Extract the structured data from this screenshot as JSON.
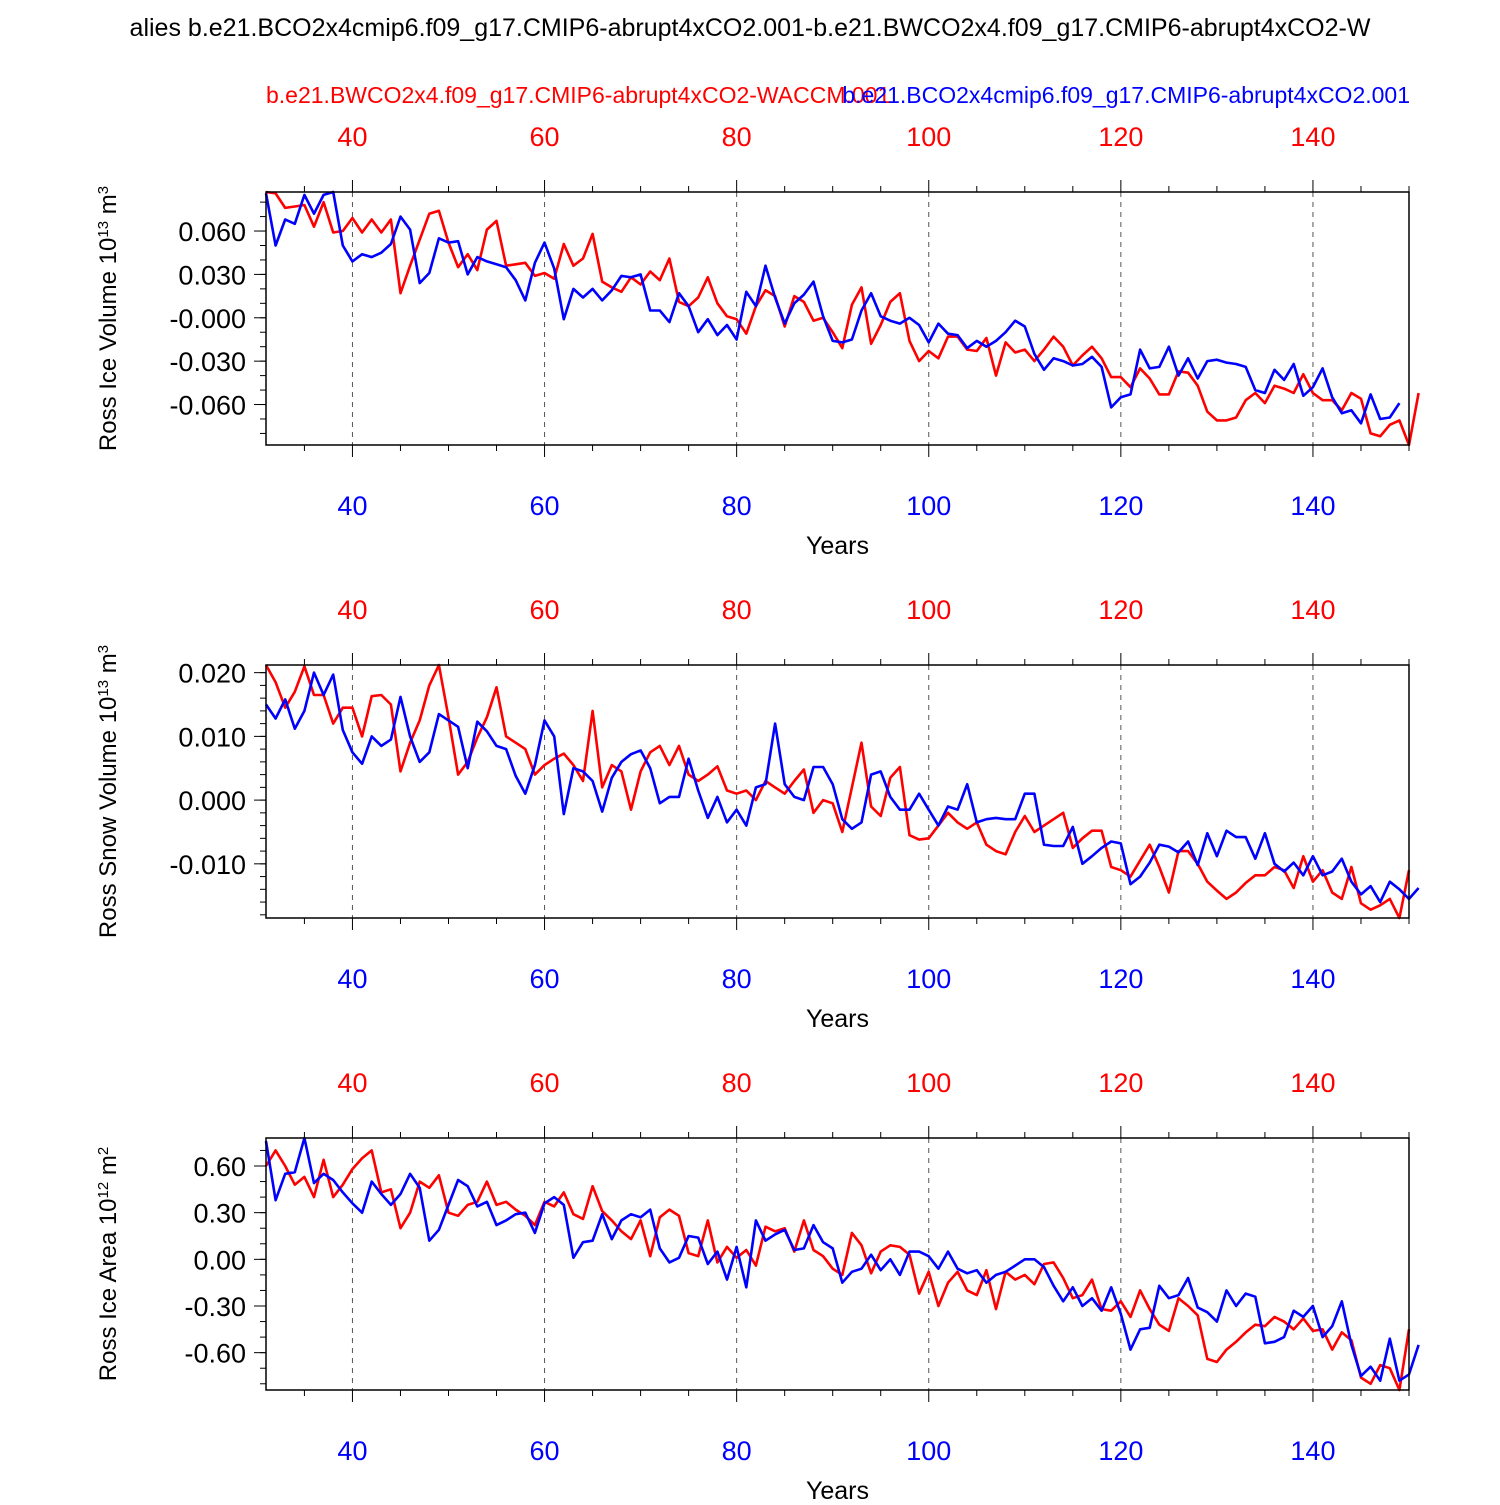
{
  "title": "alies b.e21.BCO2x4cmip6.f09_g17.CMIP6-abrupt4xCO2.001-b.e21.BWCO2x4.f09_g17.CMIP6-abrupt4xCO2-W",
  "legend": {
    "red_label": "b.e21.BWCO2x4.f09_g17.CMIP6-abrupt4xCO2-WACCM.001",
    "blue_label": "b.e21.BCO2x4cmip6.f09_g17.CMIP6-abrupt4xCO2.001"
  },
  "colors": {
    "red": "#ff0000",
    "blue": "#0000ff",
    "axis": "#000000"
  },
  "chart_data": [
    {
      "type": "line",
      "name": "ross-ice-volume",
      "ylabel_main": "Ross Ice Volume 10",
      "ylabel_exp": "13",
      "ylabel_unit": " m",
      "ylabel_unit_exp": "3",
      "xlabel": "Years",
      "xlim": [
        31,
        150
      ],
      "ylim": [
        -0.088,
        0.087
      ],
      "xticks": [
        40,
        60,
        80,
        100,
        120,
        140
      ],
      "xtick_labels": [
        "40",
        "60",
        "80",
        "100",
        "120",
        "140"
      ],
      "yticks": [
        0.06,
        0.03,
        0.0,
        -0.03,
        -0.06
      ],
      "ytick_labels": [
        "0.060",
        "0.030",
        "-0.000",
        "-0.030",
        "-0.060"
      ],
      "yminor_step": 0.01,
      "x_start": 31,
      "series": [
        {
          "name": "red",
          "values": [
            0.087,
            0.086,
            0.076,
            0.077,
            0.078,
            0.063,
            0.08,
            0.059,
            0.06,
            0.069,
            0.059,
            0.068,
            0.059,
            0.068,
            0.017,
            0.036,
            0.054,
            0.072,
            0.074,
            0.052,
            0.035,
            0.044,
            0.033,
            0.061,
            0.067,
            0.036,
            0.037,
            0.038,
            0.029,
            0.031,
            0.027,
            0.051,
            0.036,
            0.041,
            0.058,
            0.025,
            0.021,
            0.018,
            0.028,
            0.023,
            0.032,
            0.026,
            0.041,
            0.011,
            0.008,
            0.014,
            0.028,
            0.01,
            0.001,
            -0.001,
            -0.011,
            0.008,
            0.019,
            0.015,
            -0.006,
            0.015,
            0.011,
            -0.002,
            0.0,
            -0.01,
            -0.021,
            0.009,
            0.021,
            -0.018,
            -0.005,
            0.011,
            0.017,
            -0.016,
            -0.03,
            -0.023,
            -0.028,
            -0.013,
            -0.013,
            -0.022,
            -0.023,
            -0.014,
            -0.04,
            -0.017,
            -0.024,
            -0.022,
            -0.03,
            -0.022,
            -0.013,
            -0.02,
            -0.033,
            -0.026,
            -0.02,
            -0.028,
            -0.041,
            -0.041,
            -0.048,
            -0.035,
            -0.042,
            -0.053,
            -0.053,
            -0.037,
            -0.038,
            -0.047,
            -0.065,
            -0.071,
            -0.071,
            -0.069,
            -0.057,
            -0.052,
            -0.059,
            -0.047,
            -0.049,
            -0.052,
            -0.039,
            -0.052,
            -0.057,
            -0.057,
            -0.064,
            -0.052,
            -0.056,
            -0.08,
            -0.082,
            -0.074,
            -0.071,
            -0.088,
            -0.052
          ]
        },
        {
          "name": "blue",
          "values": [
            0.086,
            0.05,
            0.068,
            0.065,
            0.085,
            0.072,
            0.085,
            0.087,
            0.05,
            0.039,
            0.044,
            0.042,
            0.045,
            0.051,
            0.07,
            0.061,
            0.024,
            0.031,
            0.055,
            0.052,
            0.053,
            0.03,
            0.042,
            0.039,
            0.037,
            0.035,
            0.026,
            0.012,
            0.038,
            0.052,
            0.034,
            -0.001,
            0.02,
            0.014,
            0.02,
            0.012,
            0.019,
            0.029,
            0.028,
            0.03,
            0.005,
            0.005,
            -0.003,
            0.017,
            0.008,
            -0.01,
            -0.001,
            -0.012,
            -0.005,
            -0.015,
            0.018,
            0.008,
            0.036,
            0.014,
            -0.004,
            0.01,
            0.016,
            0.025,
            0.001,
            -0.016,
            -0.017,
            -0.015,
            0.005,
            0.017,
            0.001,
            -0.002,
            -0.004,
            0.0,
            -0.005,
            -0.017,
            -0.004,
            -0.011,
            -0.012,
            -0.021,
            -0.016,
            -0.02,
            -0.016,
            -0.01,
            -0.002,
            -0.006,
            -0.025,
            -0.036,
            -0.028,
            -0.03,
            -0.033,
            -0.032,
            -0.027,
            -0.034,
            -0.062,
            -0.055,
            -0.053,
            -0.022,
            -0.035,
            -0.034,
            -0.02,
            -0.04,
            -0.028,
            -0.042,
            -0.03,
            -0.029,
            -0.031,
            -0.032,
            -0.034,
            -0.05,
            -0.052,
            -0.036,
            -0.043,
            -0.032,
            -0.054,
            -0.048,
            -0.035,
            -0.055,
            -0.066,
            -0.064,
            -0.073,
            -0.053,
            -0.07,
            -0.069,
            -0.059
          ]
        }
      ]
    },
    {
      "type": "line",
      "name": "ross-snow-volume",
      "ylabel_main": "Ross Snow Volume 10",
      "ylabel_exp": "13",
      "ylabel_unit": " m",
      "ylabel_unit_exp": "3",
      "xlabel": "Years",
      "xlim": [
        31,
        150
      ],
      "ylim": [
        -0.0185,
        0.0212
      ],
      "xticks": [
        40,
        60,
        80,
        100,
        120,
        140
      ],
      "xtick_labels": [
        "40",
        "60",
        "80",
        "100",
        "120",
        "140"
      ],
      "yticks": [
        0.02,
        0.01,
        0.0,
        -0.01
      ],
      "ytick_labels": [
        "0.020",
        "0.010",
        "0.000",
        "-0.010"
      ],
      "yminor_step": 0.002,
      "x_start": 31,
      "series": [
        {
          "name": "red",
          "values": [
            0.0212,
            0.0185,
            0.0145,
            0.017,
            0.021,
            0.0165,
            0.0165,
            0.012,
            0.0145,
            0.0145,
            0.01,
            0.0163,
            0.0165,
            0.015,
            0.0045,
            0.009,
            0.0125,
            0.018,
            0.0212,
            0.013,
            0.004,
            0.006,
            0.0098,
            0.013,
            0.0177,
            0.01,
            0.009,
            0.008,
            0.004,
            0.0055,
            0.0065,
            0.0073,
            0.0055,
            0.003,
            0.014,
            0.002,
            0.0055,
            0.0045,
            -0.0015,
            0.0045,
            0.0075,
            0.0085,
            0.0055,
            0.0085,
            0.004,
            0.003,
            0.004,
            0.0053,
            0.0015,
            0.001,
            0.0015,
            0.0,
            0.003,
            0.002,
            0.001,
            0.003,
            0.0048,
            -0.002,
            0.0,
            -0.0005,
            -0.005,
            0.002,
            0.009,
            -0.001,
            -0.0025,
            0.0035,
            0.0052,
            -0.0055,
            -0.0062,
            -0.006,
            -0.004,
            -0.002,
            -0.0035,
            -0.0045,
            -0.0035,
            -0.007,
            -0.008,
            -0.0085,
            -0.005,
            -0.0025,
            -0.005,
            -0.004,
            -0.003,
            -0.002,
            -0.0075,
            -0.006,
            -0.0048,
            -0.0048,
            -0.0105,
            -0.011,
            -0.012,
            -0.0095,
            -0.007,
            -0.0105,
            -0.0145,
            -0.008,
            -0.008,
            -0.01,
            -0.0128,
            -0.0142,
            -0.0155,
            -0.0145,
            -0.013,
            -0.0118,
            -0.0118,
            -0.0105,
            -0.011,
            -0.0138,
            -0.0088,
            -0.0128,
            -0.011,
            -0.0145,
            -0.0155,
            -0.0105,
            -0.0162,
            -0.0172,
            -0.0165,
            -0.0155,
            -0.0185,
            -0.011
          ]
        },
        {
          "name": "blue",
          "values": [
            0.015,
            0.0128,
            0.0158,
            0.0112,
            0.014,
            0.02,
            0.0165,
            0.0197,
            0.011,
            0.0075,
            0.0057,
            0.01,
            0.0085,
            0.0095,
            0.0162,
            0.01,
            0.006,
            0.0075,
            0.0135,
            0.0125,
            0.0115,
            0.005,
            0.0123,
            0.0108,
            0.0085,
            0.008,
            0.0038,
            0.001,
            0.0055,
            0.0125,
            0.01,
            -0.0022,
            0.005,
            0.0045,
            0.003,
            -0.0018,
            0.0035,
            0.006,
            0.0072,
            0.0078,
            0.005,
            -0.0005,
            0.0005,
            0.0005,
            0.0065,
            0.0015,
            -0.0028,
            0.0005,
            -0.0035,
            -0.0015,
            -0.004,
            0.002,
            0.0025,
            0.012,
            0.0025,
            0.0005,
            0.0,
            0.0052,
            0.0052,
            0.0025,
            -0.003,
            -0.0045,
            -0.0035,
            0.004,
            0.0045,
            0.0005,
            -0.0015,
            -0.0015,
            0.001,
            -0.0015,
            -0.004,
            -0.001,
            -0.0015,
            0.0025,
            -0.0035,
            -0.003,
            -0.0028,
            -0.003,
            -0.003,
            0.001,
            0.001,
            -0.007,
            -0.0072,
            -0.0072,
            -0.0042,
            -0.01,
            -0.0088,
            -0.0075,
            -0.0065,
            -0.0068,
            -0.0132,
            -0.012,
            -0.0098,
            -0.007,
            -0.0073,
            -0.0082,
            -0.0065,
            -0.0102,
            -0.0052,
            -0.0088,
            -0.0048,
            -0.0058,
            -0.0058,
            -0.0092,
            -0.0052,
            -0.01,
            -0.0112,
            -0.0098,
            -0.0118,
            -0.0088,
            -0.0118,
            -0.0112,
            -0.0092,
            -0.0128,
            -0.0148,
            -0.0135,
            -0.016,
            -0.0128,
            -0.014,
            -0.0155,
            -0.0138
          ]
        }
      ]
    },
    {
      "type": "line",
      "name": "ross-ice-area",
      "ylabel_main": "Ross Ice Area 10",
      "ylabel_exp": "12",
      "ylabel_unit": " m",
      "ylabel_unit_exp": "2",
      "xlabel": "Years",
      "xlim": [
        31,
        150
      ],
      "ylim": [
        -0.84,
        0.78
      ],
      "xticks": [
        40,
        60,
        80,
        100,
        120,
        140
      ],
      "xtick_labels": [
        "40",
        "60",
        "80",
        "100",
        "120",
        "140"
      ],
      "yticks": [
        0.6,
        0.3,
        0.0,
        -0.3,
        -0.6
      ],
      "ytick_labels": [
        "0.60",
        "0.30",
        "0.00",
        "-0.30",
        "-0.60"
      ],
      "yminor_step": 0.1,
      "x_start": 31,
      "series": [
        {
          "name": "red",
          "values": [
            0.6,
            0.7,
            0.6,
            0.48,
            0.53,
            0.4,
            0.64,
            0.4,
            0.48,
            0.58,
            0.65,
            0.7,
            0.43,
            0.45,
            0.2,
            0.3,
            0.5,
            0.46,
            0.54,
            0.3,
            0.28,
            0.35,
            0.37,
            0.5,
            0.35,
            0.37,
            0.32,
            0.28,
            0.22,
            0.37,
            0.34,
            0.43,
            0.29,
            0.26,
            0.47,
            0.31,
            0.25,
            0.18,
            0.13,
            0.25,
            0.02,
            0.27,
            0.32,
            0.28,
            0.04,
            0.02,
            0.25,
            -0.02,
            0.08,
            0.01,
            0.06,
            -0.04,
            0.21,
            0.18,
            0.2,
            0.05,
            0.25,
            0.06,
            0.02,
            -0.06,
            -0.1,
            0.17,
            0.09,
            -0.09,
            0.05,
            0.09,
            0.08,
            0.03,
            -0.22,
            -0.08,
            -0.3,
            -0.15,
            -0.08,
            -0.2,
            -0.23,
            -0.07,
            -0.32,
            -0.08,
            -0.13,
            -0.1,
            -0.16,
            -0.03,
            -0.02,
            -0.12,
            -0.25,
            -0.23,
            -0.13,
            -0.32,
            -0.33,
            -0.27,
            -0.37,
            -0.2,
            -0.32,
            -0.42,
            -0.46,
            -0.25,
            -0.3,
            -0.36,
            -0.64,
            -0.66,
            -0.58,
            -0.53,
            -0.47,
            -0.42,
            -0.43,
            -0.37,
            -0.4,
            -0.45,
            -0.38,
            -0.46,
            -0.45,
            -0.58,
            -0.47,
            -0.52,
            -0.76,
            -0.8,
            -0.68,
            -0.7,
            -0.84,
            -0.45
          ]
        },
        {
          "name": "blue",
          "values": [
            0.76,
            0.38,
            0.55,
            0.56,
            0.78,
            0.49,
            0.55,
            0.51,
            0.43,
            0.36,
            0.3,
            0.5,
            0.42,
            0.35,
            0.42,
            0.55,
            0.46,
            0.12,
            0.19,
            0.35,
            0.51,
            0.47,
            0.34,
            0.37,
            0.22,
            0.25,
            0.29,
            0.3,
            0.17,
            0.36,
            0.4,
            0.35,
            0.01,
            0.11,
            0.12,
            0.29,
            0.13,
            0.25,
            0.29,
            0.27,
            0.32,
            0.07,
            -0.02,
            0.01,
            0.15,
            0.14,
            -0.03,
            0.05,
            -0.13,
            0.08,
            -0.18,
            0.25,
            0.12,
            0.16,
            0.19,
            0.06,
            0.07,
            0.22,
            0.11,
            0.07,
            -0.15,
            -0.08,
            -0.06,
            0.03,
            -0.07,
            0.0,
            -0.1,
            0.05,
            0.05,
            0.02,
            -0.06,
            0.05,
            -0.06,
            -0.09,
            -0.07,
            -0.15,
            -0.1,
            -0.08,
            -0.04,
            0.0,
            0.0,
            -0.05,
            -0.17,
            -0.27,
            -0.18,
            -0.3,
            -0.25,
            -0.33,
            -0.18,
            -0.35,
            -0.58,
            -0.45,
            -0.44,
            -0.17,
            -0.25,
            -0.23,
            -0.12,
            -0.31,
            -0.34,
            -0.4,
            -0.2,
            -0.3,
            -0.22,
            -0.24,
            -0.54,
            -0.53,
            -0.5,
            -0.33,
            -0.37,
            -0.3,
            -0.5,
            -0.43,
            -0.27,
            -0.55,
            -0.75,
            -0.69,
            -0.78,
            -0.51,
            -0.78,
            -0.74,
            -0.55
          ]
        }
      ]
    }
  ]
}
